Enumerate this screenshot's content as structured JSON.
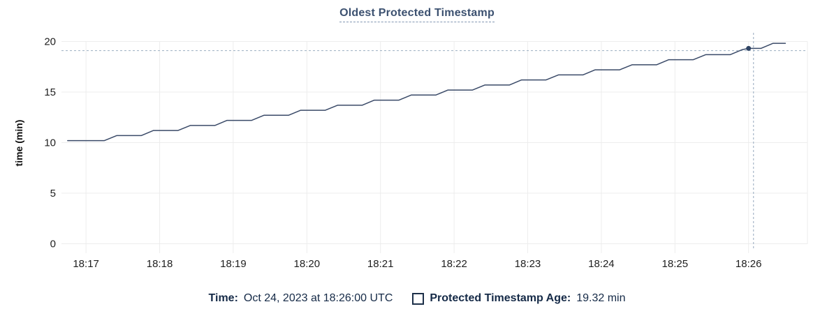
{
  "title": "Oldest Protected Timestamp",
  "legend": {
    "time_label": "Time:",
    "time_value": "Oct 24, 2023 at 18:26:00 UTC",
    "series_label": "Protected Timestamp Age:",
    "series_value": "19.32 min"
  },
  "colors": {
    "line": "#3a4a68",
    "dot": "#2f4464",
    "grid": "#ededed",
    "crosshair": "#a6b7c8",
    "axis_text": "#1e1e1e",
    "axis_label_text": "#111111",
    "title": "#3c5170",
    "legend_text": "#152a47"
  },
  "chart_data": {
    "type": "line",
    "title": "Oldest Protected Timestamp",
    "xlabel": "",
    "ylabel": "time (min)",
    "ylim": [
      0,
      20
    ],
    "y_ticks": [
      0,
      5,
      10,
      15,
      20
    ],
    "x_domain": [
      "18:16:40",
      "18:26:48"
    ],
    "x_ticks": [
      {
        "label": "18:17",
        "time": "18:17:00"
      },
      {
        "label": "18:18",
        "time": "18:18:00"
      },
      {
        "label": "18:19",
        "time": "18:19:00"
      },
      {
        "label": "18:20",
        "time": "18:20:00"
      },
      {
        "label": "18:21",
        "time": "18:21:00"
      },
      {
        "label": "18:22",
        "time": "18:22:00"
      },
      {
        "label": "18:23",
        "time": "18:23:00"
      },
      {
        "label": "18:24",
        "time": "18:24:00"
      },
      {
        "label": "18:25",
        "time": "18:25:00"
      },
      {
        "label": "18:26",
        "time": "18:26:00"
      }
    ],
    "grid": true,
    "legend_position": "bottom",
    "series": [
      {
        "name": "Protected Timestamp Age",
        "unit": "min",
        "x": [
          "18:16:45",
          "18:16:55",
          "18:17:05",
          "18:17:15",
          "18:17:25",
          "18:17:35",
          "18:17:45",
          "18:17:55",
          "18:18:05",
          "18:18:15",
          "18:18:25",
          "18:18:35",
          "18:18:45",
          "18:18:55",
          "18:19:05",
          "18:19:15",
          "18:19:25",
          "18:19:35",
          "18:19:45",
          "18:19:55",
          "18:20:05",
          "18:20:15",
          "18:20:25",
          "18:20:35",
          "18:20:45",
          "18:20:55",
          "18:21:05",
          "18:21:15",
          "18:21:25",
          "18:21:35",
          "18:21:45",
          "18:21:55",
          "18:22:05",
          "18:22:15",
          "18:22:25",
          "18:22:35",
          "18:22:45",
          "18:22:55",
          "18:23:05",
          "18:23:15",
          "18:23:25",
          "18:23:35",
          "18:23:45",
          "18:23:55",
          "18:24:05",
          "18:24:15",
          "18:24:25",
          "18:24:35",
          "18:24:45",
          "18:24:55",
          "18:25:05",
          "18:25:15",
          "18:25:25",
          "18:25:35",
          "18:25:45",
          "18:25:55",
          "18:26:00",
          "18:26:10",
          "18:26:20",
          "18:26:30"
        ],
        "values": [
          10.2,
          10.2,
          10.2,
          10.2,
          10.7,
          10.7,
          10.7,
          11.2,
          11.2,
          11.2,
          11.7,
          11.7,
          11.7,
          12.2,
          12.2,
          12.2,
          12.7,
          12.7,
          12.7,
          13.2,
          13.2,
          13.2,
          13.7,
          13.7,
          13.7,
          14.2,
          14.2,
          14.2,
          14.7,
          14.7,
          14.7,
          15.2,
          15.2,
          15.2,
          15.7,
          15.7,
          15.7,
          16.2,
          16.2,
          16.2,
          16.7,
          16.7,
          16.7,
          17.2,
          17.2,
          17.2,
          17.7,
          17.7,
          17.7,
          18.2,
          18.2,
          18.2,
          18.7,
          18.7,
          18.7,
          19.2,
          19.32,
          19.32,
          19.82,
          19.82
        ]
      }
    ],
    "highlight": {
      "time": "18:26:00",
      "value": 19.32
    },
    "cursor": {
      "time": "18:26:04",
      "value": 19.1
    }
  }
}
